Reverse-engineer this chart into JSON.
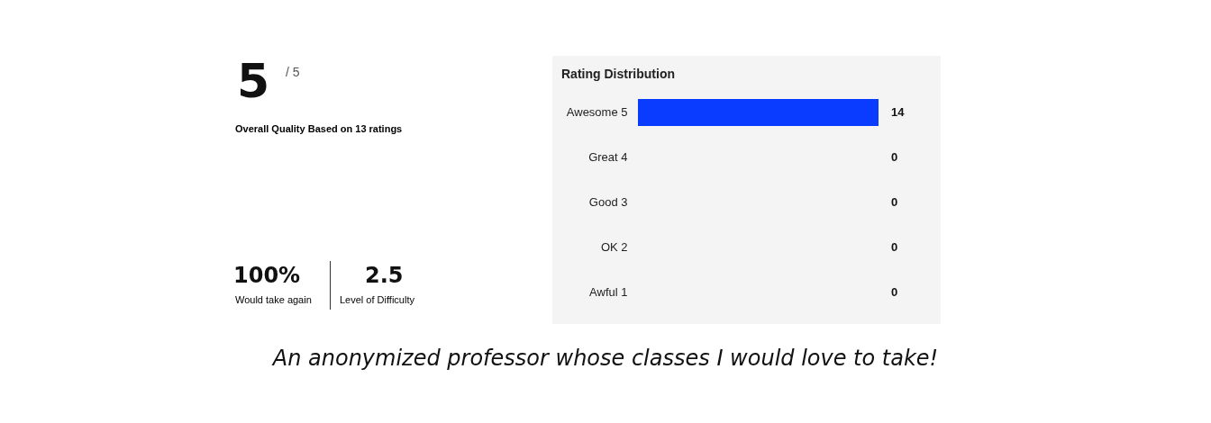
{
  "chart_data": [
    {
      "type": "other",
      "annotations": [
        "5",
        "/ 5",
        "Overall Quality Based on 13 ratings",
        "100%",
        "Would take again",
        "2.5",
        "Level of Difficulty"
      ]
    },
    {
      "type": "bar",
      "orientation": "horizontal",
      "title": "Rating Distribution",
      "categories": [
        "Awesome 5",
        "Great 4",
        "Good 3",
        "OK 2",
        "Awful 1"
      ],
      "values": [
        14,
        0,
        0,
        0,
        0
      ],
      "colors": [
        "#0a3cff",
        "#0a3cff",
        "#0a3cff",
        "#0a3cff",
        "#0a3cff"
      ],
      "data_labels": true,
      "annotations": [
        "An anonymized professor whose classes I would love to take!"
      ]
    }
  ]
}
